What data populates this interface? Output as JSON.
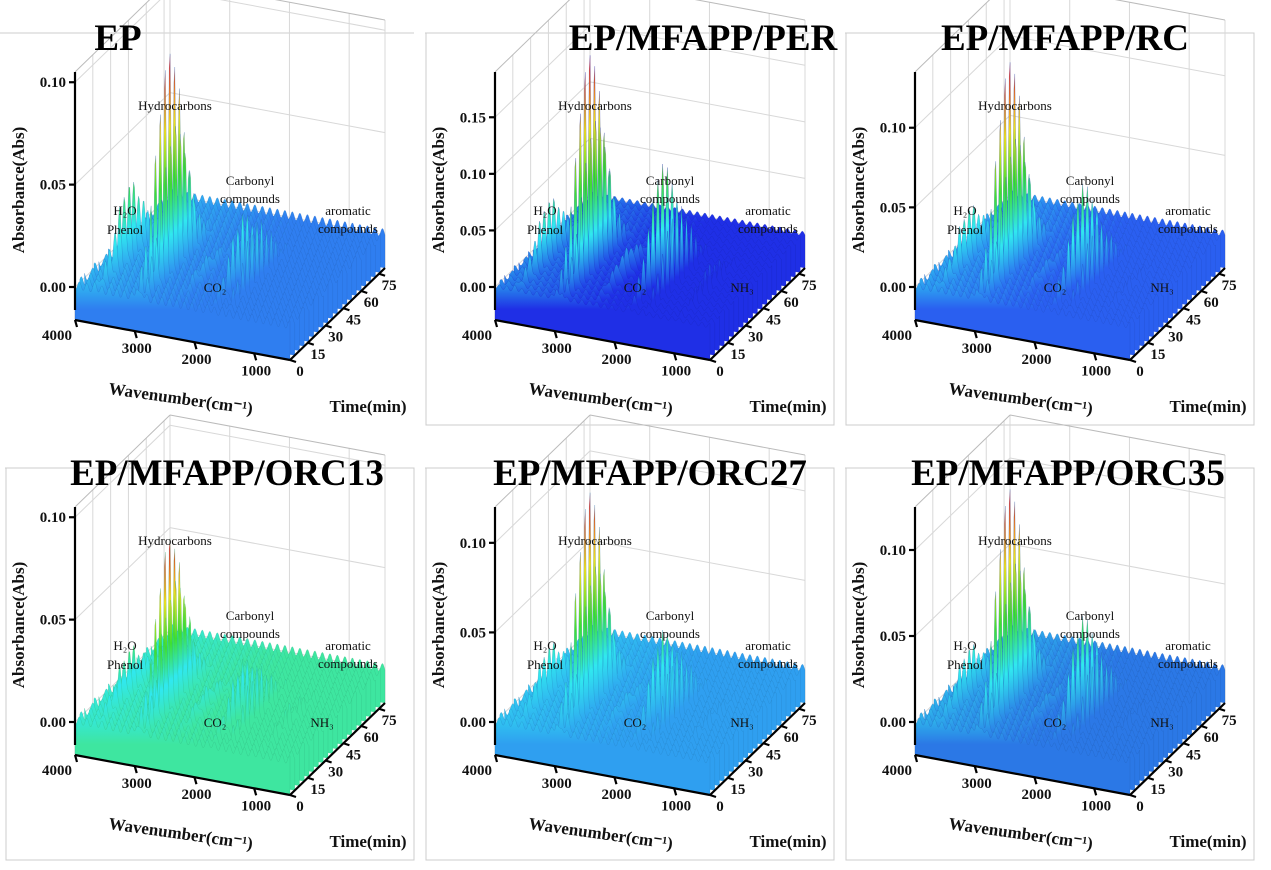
{
  "chart_data": [
    {
      "type": "surface3d",
      "title": "EP",
      "xlabel": "Wavenumber(cm⁻¹)",
      "ylabel": "Time(min)",
      "zlabel": "Absorbance(Abs)",
      "x_ticks": [
        "4000",
        "3000",
        "2000",
        "1000"
      ],
      "y_ticks": [
        "0",
        "15",
        "30",
        "45",
        "60",
        "75"
      ],
      "z_ticks": [
        "0.00",
        "0.05",
        "0.10"
      ],
      "z_tick_values": [
        0,
        0.05,
        0.1
      ],
      "zlim": [
        0,
        0.105
      ],
      "base_color": "#2f7ef0",
      "peaks": [
        {
          "label": "H₂O Phenol",
          "wavenumber": 3650,
          "max_absorbance": 0.035
        },
        {
          "label": "Hydrocarbons",
          "wavenumber": 2970,
          "max_absorbance": 0.105
        },
        {
          "label": "Hydrocarbons",
          "wavenumber": 2870,
          "max_absorbance": 0.068
        },
        {
          "label": "CO₂",
          "wavenumber": 2350,
          "max_absorbance": 0.006
        },
        {
          "label": "Carbonyl compounds",
          "wavenumber": 1750,
          "max_absorbance": 0.03
        },
        {
          "label": "aromatic compounds",
          "wavenumber": 1510,
          "max_absorbance": 0.028
        }
      ],
      "annotations": [
        "Hydrocarbons",
        "H₂O",
        "Phenol",
        "Carbonyl",
        "compounds",
        "aromatic",
        "compounds",
        "CO₂"
      ]
    },
    {
      "type": "surface3d",
      "title": "EP/MFAPP/PER",
      "xlabel": "Wavenumber(cm⁻¹)",
      "ylabel": "Time(min)",
      "zlabel": "Absorbance(Abs)",
      "x_ticks": [
        "4000",
        "3000",
        "2000",
        "1000"
      ],
      "y_ticks": [
        "0",
        "15",
        "30",
        "45",
        "60",
        "75"
      ],
      "z_ticks": [
        "0.00",
        "0.05",
        "0.10",
        "0.15"
      ],
      "z_tick_values": [
        0,
        0.05,
        0.1,
        0.15
      ],
      "zlim": [
        0,
        0.19
      ],
      "base_color": "#1f2fe6",
      "peaks": [
        {
          "label": "H₂O Phenol",
          "wavenumber": 3650,
          "max_absorbance": 0.05
        },
        {
          "label": "Hydrocarbons",
          "wavenumber": 2970,
          "max_absorbance": 0.19
        },
        {
          "label": "Hydrocarbons",
          "wavenumber": 2870,
          "max_absorbance": 0.13
        },
        {
          "label": "CO₂",
          "wavenumber": 2350,
          "max_absorbance": 0.02
        },
        {
          "label": "Carbonyl compounds",
          "wavenumber": 1750,
          "max_absorbance": 0.1
        },
        {
          "label": "aromatic compounds",
          "wavenumber": 1510,
          "max_absorbance": 0.065
        },
        {
          "label": "NH₃",
          "wavenumber": 960,
          "max_absorbance": 0.02
        }
      ],
      "annotations": [
        "Hydrocarbons",
        "H₂O",
        "Phenol",
        "Carbonyl",
        "compounds",
        "aromatic",
        "compounds",
        "CO₂",
        "NH₃"
      ]
    },
    {
      "type": "surface3d",
      "title": "EP/MFAPP/RC",
      "xlabel": "Wavenumber(cm⁻¹)",
      "ylabel": "Time(min)",
      "zlabel": "Absorbance(Abs)",
      "x_ticks": [
        "4000",
        "3000",
        "2000",
        "1000"
      ],
      "y_ticks": [
        "0",
        "15",
        "30",
        "45",
        "60",
        "75"
      ],
      "z_ticks": [
        "0.00",
        "0.05",
        "0.10"
      ],
      "z_tick_values": [
        0,
        0.05,
        0.1
      ],
      "zlim": [
        0,
        0.135
      ],
      "base_color": "#2a5ff0",
      "peaks": [
        {
          "label": "H₂O Phenol",
          "wavenumber": 3650,
          "max_absorbance": 0.03
        },
        {
          "label": "Hydrocarbons",
          "wavenumber": 2970,
          "max_absorbance": 0.13
        },
        {
          "label": "Hydrocarbons",
          "wavenumber": 2870,
          "max_absorbance": 0.08
        },
        {
          "label": "CO₂",
          "wavenumber": 2350,
          "max_absorbance": 0.006
        },
        {
          "label": "Carbonyl compounds",
          "wavenumber": 1750,
          "max_absorbance": 0.058
        },
        {
          "label": "aromatic compounds",
          "wavenumber": 1510,
          "max_absorbance": 0.035
        },
        {
          "label": "NH₃",
          "wavenumber": 960,
          "max_absorbance": 0.006
        }
      ],
      "annotations": [
        "Hydrocarbons",
        "H₂O",
        "Phenol",
        "Carbonyl",
        "compounds",
        "aromatic",
        "compounds",
        "CO₂",
        "NH₃"
      ]
    },
    {
      "type": "surface3d",
      "title": "EP/MFAPP/ORC13",
      "xlabel": "Wavenumber(cm⁻¹)",
      "ylabel": "Time(min)",
      "zlabel": "Absorbance(Abs)",
      "x_ticks": [
        "4000",
        "3000",
        "2000",
        "1000"
      ],
      "y_ticks": [
        "0",
        "15",
        "30",
        "45",
        "60",
        "75"
      ],
      "z_ticks": [
        "0.00",
        "0.05",
        "0.10"
      ],
      "z_tick_values": [
        0,
        0.05,
        0.1
      ],
      "zlim": [
        0,
        0.105
      ],
      "base_color": "#3ee6a0",
      "peaks": [
        {
          "label": "H₂O Phenol",
          "wavenumber": 3650,
          "max_absorbance": 0.02
        },
        {
          "label": "Hydrocarbons",
          "wavenumber": 2970,
          "max_absorbance": 0.08
        },
        {
          "label": "Hydrocarbons",
          "wavenumber": 2870,
          "max_absorbance": 0.058
        },
        {
          "label": "CO₂",
          "wavenumber": 2350,
          "max_absorbance": 0.008
        },
        {
          "label": "Carbonyl compounds",
          "wavenumber": 1750,
          "max_absorbance": 0.025
        },
        {
          "label": "aromatic compounds",
          "wavenumber": 1510,
          "max_absorbance": 0.022
        },
        {
          "label": "NH₃",
          "wavenumber": 960,
          "max_absorbance": 0.008
        }
      ],
      "annotations": [
        "Hydrocarbons",
        "H₂O",
        "Phenol",
        "Carbonyl",
        "compounds",
        "aromatic",
        "compounds",
        "CO₂",
        "NH₃"
      ]
    },
    {
      "type": "surface3d",
      "title": "EP/MFAPP/ORC27",
      "xlabel": "Wavenumber(cm⁻¹)",
      "ylabel": "Time(min)",
      "zlabel": "Absorbance(Abs)",
      "x_ticks": [
        "4000",
        "3000",
        "2000",
        "1000"
      ],
      "y_ticks": [
        "0",
        "15",
        "30",
        "45",
        "60",
        "75"
      ],
      "z_ticks": [
        "0.00",
        "0.05",
        "0.10"
      ],
      "z_tick_values": [
        0,
        0.05,
        0.1
      ],
      "zlim": [
        0,
        0.12
      ],
      "base_color": "#2f9ff0",
      "peaks": [
        {
          "label": "H₂O Phenol",
          "wavenumber": 3650,
          "max_absorbance": 0.025
        },
        {
          "label": "Hydrocarbons",
          "wavenumber": 2970,
          "max_absorbance": 0.118
        },
        {
          "label": "Hydrocarbons",
          "wavenumber": 2870,
          "max_absorbance": 0.075
        },
        {
          "label": "CO₂",
          "wavenumber": 2350,
          "max_absorbance": 0.006
        },
        {
          "label": "Carbonyl compounds",
          "wavenumber": 1750,
          "max_absorbance": 0.045
        },
        {
          "label": "aromatic compounds",
          "wavenumber": 1510,
          "max_absorbance": 0.034
        },
        {
          "label": "NH₃",
          "wavenumber": 960,
          "max_absorbance": 0.006
        }
      ],
      "annotations": [
        "Hydrocarbons",
        "H₂O",
        "Phenol",
        "Carbonyl",
        "compounds",
        "aromatic",
        "compounds",
        "CO₂",
        "NH₃"
      ]
    },
    {
      "type": "surface3d",
      "title": "EP/MFAPP/ORC35",
      "xlabel": "Wavenumber(cm⁻¹)",
      "ylabel": "Time(min)",
      "zlabel": "Absorbance(Abs)",
      "x_ticks": [
        "4000",
        "3000",
        "2000",
        "1000"
      ],
      "y_ticks": [
        "0",
        "15",
        "30",
        "45",
        "60",
        "75"
      ],
      "z_ticks": [
        "0.00",
        "0.05",
        "0.10"
      ],
      "z_tick_values": [
        0,
        0.05,
        0.1
      ],
      "zlim": [
        0,
        0.125
      ],
      "base_color": "#2b78e6",
      "peaks": [
        {
          "label": "H₂O Phenol",
          "wavenumber": 3650,
          "max_absorbance": 0.025
        },
        {
          "label": "Hydrocarbons",
          "wavenumber": 2970,
          "max_absorbance": 0.125
        },
        {
          "label": "Hydrocarbons",
          "wavenumber": 2870,
          "max_absorbance": 0.08
        },
        {
          "label": "CO₂",
          "wavenumber": 2350,
          "max_absorbance": 0.006
        },
        {
          "label": "Carbonyl compounds",
          "wavenumber": 1750,
          "max_absorbance": 0.055
        },
        {
          "label": "aromatic compounds",
          "wavenumber": 1510,
          "max_absorbance": 0.035
        },
        {
          "label": "NH₃",
          "wavenumber": 960,
          "max_absorbance": 0.006
        }
      ],
      "annotations": [
        "Hydrocarbons",
        "H₂O",
        "Phenol",
        "Carbonyl",
        "compounds",
        "aromatic",
        "compounds",
        "CO₂",
        "NH₃"
      ]
    }
  ]
}
